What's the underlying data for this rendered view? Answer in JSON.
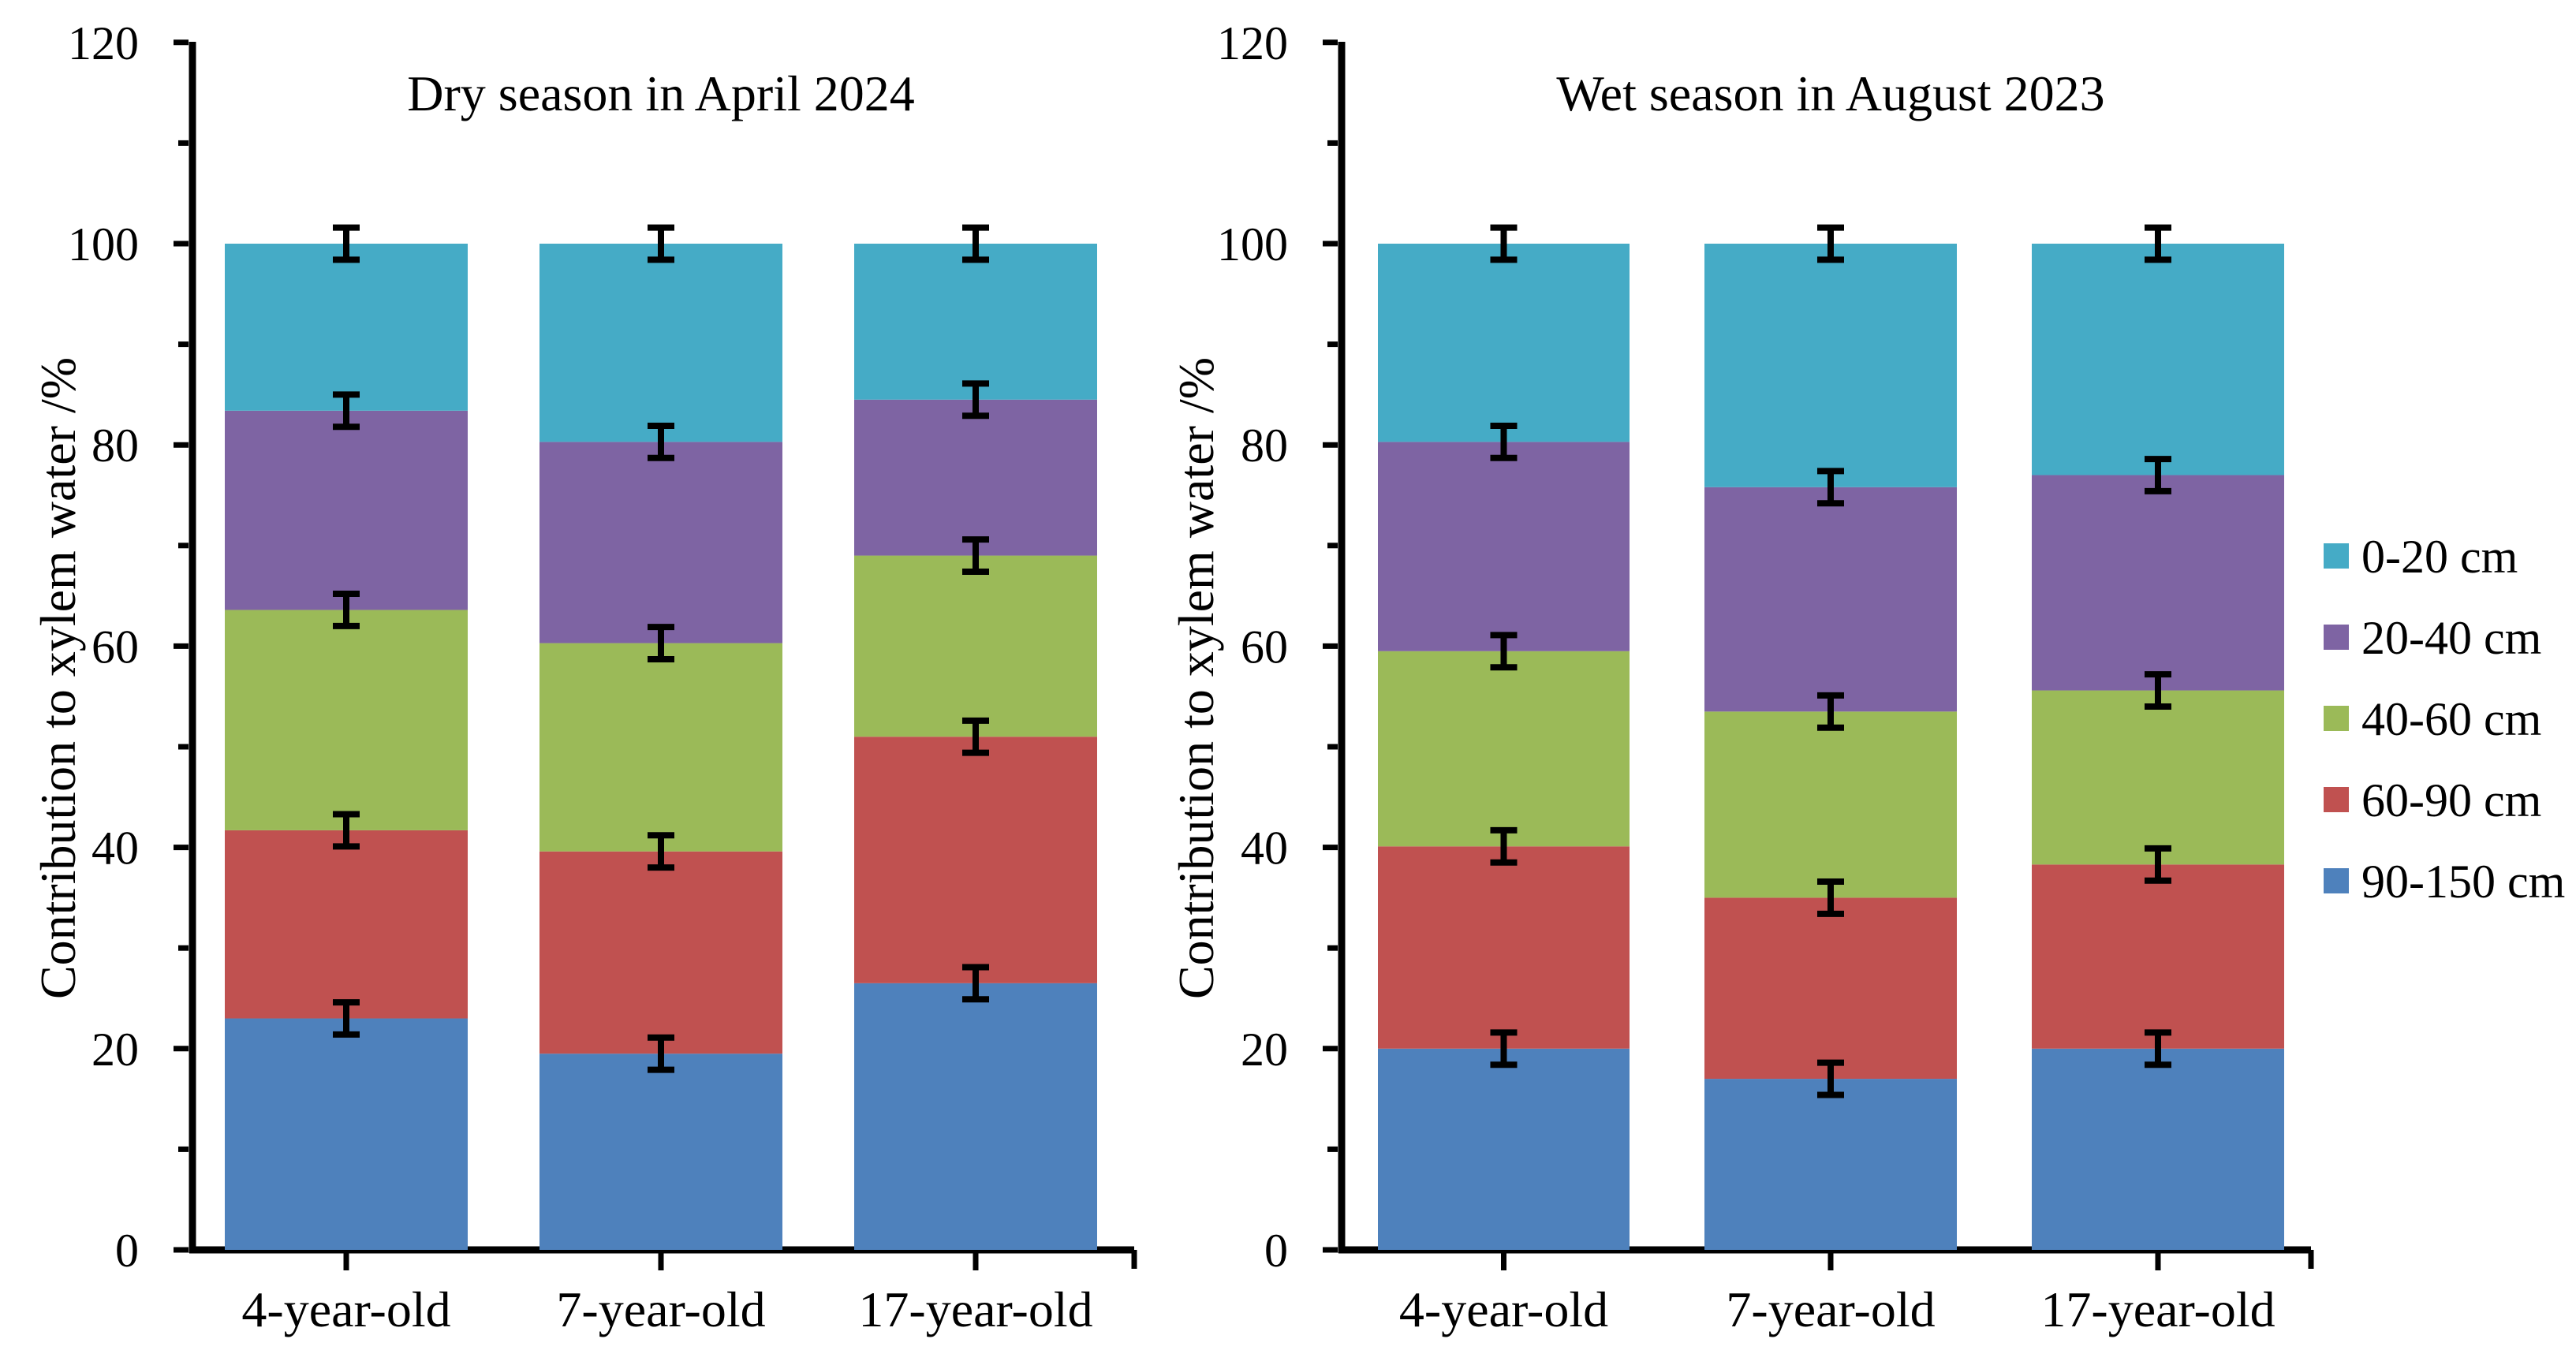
{
  "figure": {
    "background": "#ffffff",
    "y_axis_label": "Contribution to xylem water /%"
  },
  "legend": {
    "items": [
      {
        "label": "0-20 cm",
        "color": "#45ABC6"
      },
      {
        "label": "20-40 cm",
        "color": "#7E64A3"
      },
      {
        "label": "40-60 cm",
        "color": "#9BBA58"
      },
      {
        "label": "60-90 cm",
        "color": "#C05150"
      },
      {
        "label": "90-150 cm",
        "color": "#4E81BC"
      }
    ]
  },
  "chart_data": [
    {
      "type": "bar",
      "stacked": true,
      "title": "Dry season in April 2024",
      "ylabel": "Contribution to xylem water /%",
      "categories": [
        "4-year-old",
        "7-year-old",
        "17-year-old"
      ],
      "ylim": [
        0,
        120
      ],
      "ytick_major": 20,
      "ytick_minor": 10,
      "grid": false,
      "series": [
        {
          "name": "90-150 cm",
          "color": "#4E81BC",
          "values": [
            23.0,
            19.5,
            26.5
          ],
          "errors": [
            1.6,
            1.6,
            1.6
          ]
        },
        {
          "name": "60-90 cm",
          "color": "#C05150",
          "values": [
            18.7,
            20.1,
            24.5
          ],
          "errors": [
            1.6,
            1.6,
            1.6
          ]
        },
        {
          "name": "40-60 cm",
          "color": "#9BBA58",
          "values": [
            21.9,
            20.7,
            18.0
          ],
          "errors": [
            1.6,
            1.6,
            1.6
          ]
        },
        {
          "name": "20-40 cm",
          "color": "#7E64A3",
          "values": [
            19.8,
            20.0,
            15.5
          ],
          "errors": [
            1.6,
            1.6,
            1.6
          ]
        },
        {
          "name": "0-20 cm",
          "color": "#45ABC6",
          "values": [
            16.6,
            19.7,
            15.5
          ],
          "errors": [
            1.6,
            1.6,
            1.6
          ]
        }
      ]
    },
    {
      "type": "bar",
      "stacked": true,
      "title": "Wet season in August 2023",
      "ylabel": "Contribution to xylem water /%",
      "categories": [
        "4-year-old",
        "7-year-old",
        "17-year-old"
      ],
      "ylim": [
        0,
        120
      ],
      "ytick_major": 20,
      "ytick_minor": 10,
      "grid": false,
      "series": [
        {
          "name": "90-150 cm",
          "color": "#4E81BC",
          "values": [
            20.0,
            17.0,
            20.0
          ],
          "errors": [
            1.6,
            1.6,
            1.6
          ]
        },
        {
          "name": "60-90 cm",
          "color": "#C05150",
          "values": [
            20.1,
            18.0,
            18.3
          ],
          "errors": [
            1.6,
            1.6,
            1.6
          ]
        },
        {
          "name": "40-60 cm",
          "color": "#9BBA58",
          "values": [
            19.4,
            18.5,
            17.3
          ],
          "errors": [
            1.6,
            1.6,
            1.6
          ]
        },
        {
          "name": "20-40 cm",
          "color": "#7E64A3",
          "values": [
            20.8,
            22.3,
            21.4
          ],
          "errors": [
            1.6,
            1.6,
            1.6
          ]
        },
        {
          "name": "0-20 cm",
          "color": "#45ABC6",
          "values": [
            19.7,
            24.2,
            23.0
          ],
          "errors": [
            1.6,
            1.6,
            1.6
          ]
        }
      ]
    }
  ]
}
